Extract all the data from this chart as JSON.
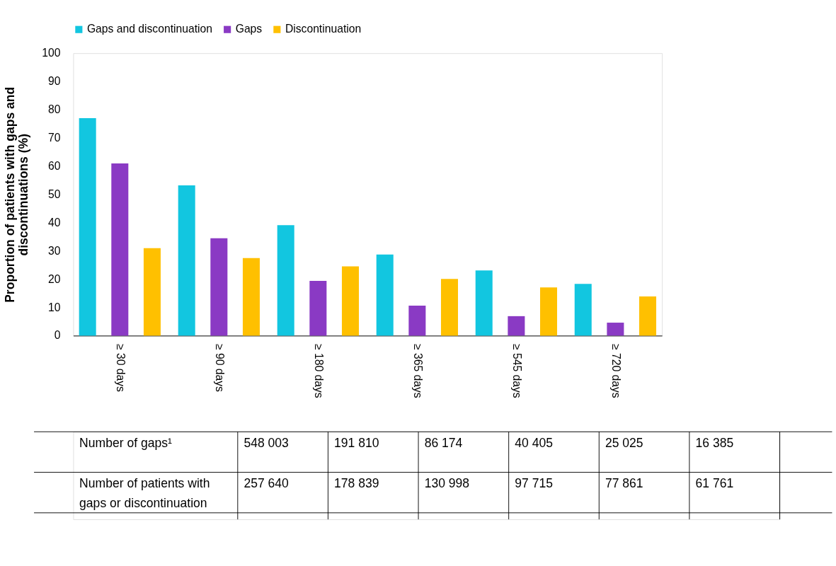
{
  "chart_data": {
    "type": "bar",
    "ylabel": "Proportion of patients with gaps and discontinuations (%)",
    "categories": [
      "≥ 30 days",
      "≥ 90 days",
      "≥ 180 days",
      "≥ 365 days",
      "≥ 545 days",
      "≥ 720 days"
    ],
    "series": [
      {
        "name": "Gaps and discontinuation",
        "color": "#12c6e0",
        "values": [
          77,
          53.2,
          39.1,
          28.7,
          23.1,
          18.3
        ]
      },
      {
        "name": "Gaps",
        "color": "#8a3ac4",
        "values": [
          61,
          34.5,
          19.4,
          10.6,
          6.9,
          4.6
        ]
      },
      {
        "name": "Discontinuation",
        "color": "#ffc000",
        "values": [
          31,
          27.5,
          24.5,
          20.1,
          17.1,
          13.9
        ]
      }
    ],
    "ylim": [
      0,
      100
    ],
    "yticks": [
      0,
      10,
      20,
      30,
      40,
      50,
      60,
      70,
      80,
      90,
      100
    ],
    "grid": false,
    "legend": "top",
    "annotations": [
      "Number of gaps¹",
      "548 003",
      "191 810",
      "86 174",
      "40 405",
      "25 025",
      "16 385",
      "Number of patients with gaps or discontinuation",
      "257 640",
      "178 839",
      "130 998",
      "97 715",
      "77 861",
      "61 761"
    ]
  }
}
